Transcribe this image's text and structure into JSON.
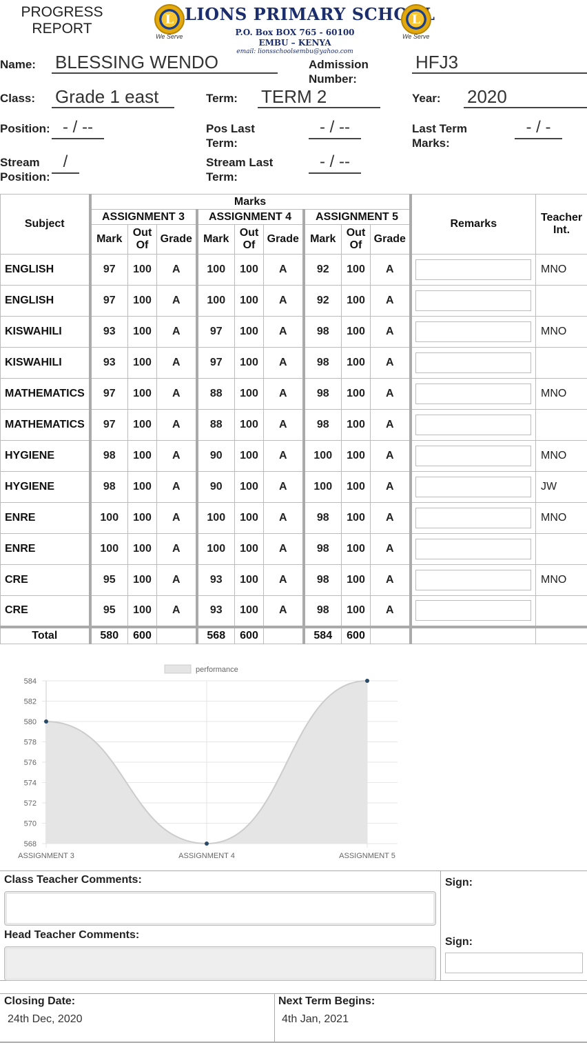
{
  "header": {
    "title_line1": "PROGRESS",
    "title_line2": "REPORT",
    "school_name": "LIONS PRIMARY SCHOOL",
    "address_line1": "P.O. Box  BOX 765 - 60100",
    "address_line2": "EMBU – KENYA",
    "email": "email: lionsschoolsembu@yahoo.com",
    "motto": "We Serve",
    "logo_letter": "L"
  },
  "student": {
    "name_label": "Name:",
    "name": "BLESSING WENDO",
    "admission_label_1": "Admission",
    "admission_label_2": "Number:",
    "admission": "HFJ3",
    "class_label": "Class:",
    "class": "Grade 1 east",
    "term_label": "Term:",
    "term": "TERM 2",
    "year_label": "Year:",
    "year": "2020",
    "position_label": "Position:",
    "position": "- / --",
    "pos_last_label_1": "Pos Last",
    "pos_last_label_2": "Term:",
    "pos_last": "- / --",
    "last_marks_label_1": "Last Term",
    "last_marks_label_2": "Marks:",
    "last_marks": "- / -",
    "stream_pos_label_1": "Stream",
    "stream_pos_label_2": "Position:",
    "stream_pos": "/",
    "stream_last_label_1": "Stream Last",
    "stream_last_label_2": "Term:",
    "stream_last": "- / --"
  },
  "table": {
    "subject_header": "Subject",
    "marks_header": "Marks",
    "assignments": [
      "ASSIGNMENT 3",
      "ASSIGNMENT 4",
      "ASSIGNMENT 5"
    ],
    "mark_header": "Mark",
    "outof_header_1": "Out",
    "outof_header_2": "Of",
    "grade_header": "Grade",
    "remarks_header": "Remarks",
    "teacher_header_1": "Teacher",
    "teacher_header_2": "Int.",
    "rows": [
      {
        "subject": "ENGLISH",
        "a3": [
          "97",
          "100",
          "A"
        ],
        "a4": [
          "100",
          "100",
          "A"
        ],
        "a5": [
          "92",
          "100",
          "A"
        ],
        "teacher": "MNO"
      },
      {
        "subject": "ENGLISH",
        "a3": [
          "97",
          "100",
          "A"
        ],
        "a4": [
          "100",
          "100",
          "A"
        ],
        "a5": [
          "92",
          "100",
          "A"
        ],
        "teacher": ""
      },
      {
        "subject": "KISWAHILI",
        "a3": [
          "93",
          "100",
          "A"
        ],
        "a4": [
          "97",
          "100",
          "A"
        ],
        "a5": [
          "98",
          "100",
          "A"
        ],
        "teacher": "MNO"
      },
      {
        "subject": "KISWAHILI",
        "a3": [
          "93",
          "100",
          "A"
        ],
        "a4": [
          "97",
          "100",
          "A"
        ],
        "a5": [
          "98",
          "100",
          "A"
        ],
        "teacher": ""
      },
      {
        "subject": "MATHEMATICS",
        "a3": [
          "97",
          "100",
          "A"
        ],
        "a4": [
          "88",
          "100",
          "A"
        ],
        "a5": [
          "98",
          "100",
          "A"
        ],
        "teacher": "MNO"
      },
      {
        "subject": "MATHEMATICS",
        "a3": [
          "97",
          "100",
          "A"
        ],
        "a4": [
          "88",
          "100",
          "A"
        ],
        "a5": [
          "98",
          "100",
          "A"
        ],
        "teacher": ""
      },
      {
        "subject": "HYGIENE",
        "a3": [
          "98",
          "100",
          "A"
        ],
        "a4": [
          "90",
          "100",
          "A"
        ],
        "a5": [
          "100",
          "100",
          "A"
        ],
        "teacher": "MNO"
      },
      {
        "subject": "HYGIENE",
        "a3": [
          "98",
          "100",
          "A"
        ],
        "a4": [
          "90",
          "100",
          "A"
        ],
        "a5": [
          "100",
          "100",
          "A"
        ],
        "teacher": "JW"
      },
      {
        "subject": "ENRE",
        "a3": [
          "100",
          "100",
          "A"
        ],
        "a4": [
          "100",
          "100",
          "A"
        ],
        "a5": [
          "98",
          "100",
          "A"
        ],
        "teacher": "MNO"
      },
      {
        "subject": "ENRE",
        "a3": [
          "100",
          "100",
          "A"
        ],
        "a4": [
          "100",
          "100",
          "A"
        ],
        "a5": [
          "98",
          "100",
          "A"
        ],
        "teacher": ""
      },
      {
        "subject": "CRE",
        "a3": [
          "95",
          "100",
          "A"
        ],
        "a4": [
          "93",
          "100",
          "A"
        ],
        "a5": [
          "98",
          "100",
          "A"
        ],
        "teacher": "MNO"
      },
      {
        "subject": "CRE",
        "a3": [
          "95",
          "100",
          "A"
        ],
        "a4": [
          "93",
          "100",
          "A"
        ],
        "a5": [
          "98",
          "100",
          "A"
        ],
        "teacher": ""
      }
    ],
    "total_label": "Total",
    "totals": {
      "a3": [
        "580",
        "600"
      ],
      "a4": [
        "568",
        "600"
      ],
      "a5": [
        "584",
        "600"
      ]
    }
  },
  "chart_data": {
    "type": "area",
    "categories": [
      "ASSIGNMENT 3",
      "ASSIGNMENT 4",
      "ASSIGNMENT 5"
    ],
    "series": [
      {
        "name": "performance",
        "values": [
          580,
          568,
          584
        ]
      }
    ],
    "ylim": [
      568,
      584
    ],
    "yticks": [
      568,
      570,
      572,
      574,
      576,
      578,
      580,
      582,
      584
    ],
    "grid": true,
    "legend": "top-center",
    "fill_color": "#e5e5e5",
    "line_color": "#cccccc",
    "point_color": "#2b4a66"
  },
  "comments": {
    "class_teacher_label": "Class Teacher Comments:",
    "head_teacher_label": "Head Teacher Comments:",
    "sign_label": "Sign:"
  },
  "dates": {
    "closing_label": "Closing Date:",
    "closing": "24th Dec, 2020",
    "next_label": "Next Term Begins:",
    "next": "4th Jan, 2021"
  }
}
